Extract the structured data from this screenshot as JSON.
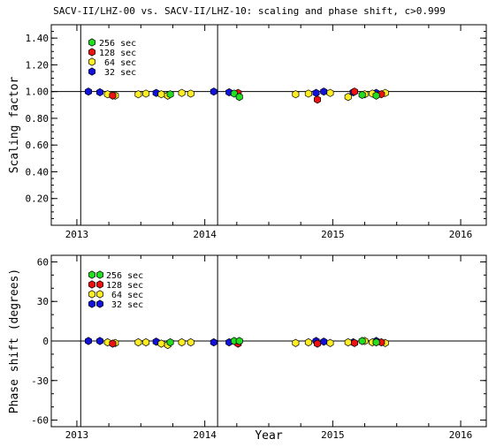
{
  "title": "SACV-II/LHZ-00 vs. SACV-II/LHZ-10: scaling and phase shift, c>0.999",
  "colors": {
    "256 sec": "#22dd22",
    "128 sec": "#ee1111",
    "64 sec": "#ffee22",
    "32 sec": "#1111dd",
    "axes": "#000000"
  },
  "chart_data": [
    {
      "type": "scatter",
      "title": "SACV-II/LHZ-00 vs. SACV-II/LHZ-10: scaling and phase shift, c>0.999",
      "xlabel": "",
      "ylabel": "Scaling factor",
      "xlim": [
        2012.8,
        2016.2
      ],
      "ylim": [
        0.0,
        1.5
      ],
      "x_ticks": [
        "2013",
        "2014",
        "2015",
        "2016"
      ],
      "y_ticks": [
        "0.20",
        "0.40",
        "0.60",
        "0.80",
        "1.00",
        "1.20",
        "1.40"
      ],
      "reference_line": 1.0,
      "vertical_lines": [
        2013.03,
        2014.1
      ],
      "legend": {
        "placement": "top-left",
        "entries": [
          "256 sec",
          "128 sec",
          "64 sec",
          "32 sec"
        ]
      },
      "series": [
        {
          "name": "32 sec",
          "x": [
            2013.09,
            2013.18,
            2013.62,
            2014.07,
            2014.19,
            2014.87,
            2014.93,
            2015.16,
            2015.34
          ],
          "y": [
            1.0,
            0.995,
            0.99,
            1.0,
            0.995,
            0.99,
            1.0,
            0.995,
            0.99
          ]
        },
        {
          "name": "64 sec",
          "x": [
            2013.24,
            2013.3,
            2013.48,
            2013.54,
            2013.66,
            2013.71,
            2013.82,
            2013.89,
            2014.71,
            2014.81,
            2014.98,
            2015.12,
            2015.25,
            2015.31,
            2015.41
          ],
          "y": [
            0.98,
            0.97,
            0.98,
            0.985,
            0.98,
            0.97,
            0.99,
            0.985,
            0.98,
            0.985,
            0.99,
            0.96,
            0.98,
            0.985,
            0.99
          ]
        },
        {
          "name": "128 sec",
          "x": [
            2013.28,
            2014.26,
            2014.88,
            2015.17,
            2015.38
          ],
          "y": [
            0.97,
            0.99,
            0.94,
            1.0,
            0.98
          ]
        },
        {
          "name": "256 sec",
          "x": [
            2013.73,
            2014.23,
            2014.27,
            2015.23,
            2015.34
          ],
          "y": [
            0.98,
            0.985,
            0.96,
            0.975,
            0.97
          ]
        }
      ]
    },
    {
      "type": "scatter",
      "xlabel": "Year",
      "ylabel": "Phase shift (degrees)",
      "xlim": [
        2012.8,
        2016.2
      ],
      "ylim": [
        -65,
        65
      ],
      "x_ticks": [
        "2013",
        "2014",
        "2015",
        "2016"
      ],
      "y_ticks": [
        "60",
        "30",
        "0",
        "-30",
        "-60"
      ],
      "reference_line": 0,
      "vertical_lines": [
        2013.03,
        2014.1
      ],
      "legend": {
        "placement": "top-left",
        "entries": [
          "256 sec",
          "128 sec",
          "64 sec",
          "32 sec"
        ]
      },
      "series": [
        {
          "name": "32 sec",
          "x": [
            2013.09,
            2013.18,
            2013.62,
            2014.07,
            2014.19,
            2014.87,
            2014.93,
            2015.16,
            2015.34
          ],
          "y": [
            0,
            0,
            -0.5,
            -1,
            -1,
            0,
            -0.5,
            -1,
            0
          ]
        },
        {
          "name": "64 sec",
          "x": [
            2013.24,
            2013.3,
            2013.48,
            2013.54,
            2013.66,
            2013.71,
            2013.82,
            2013.89,
            2014.71,
            2014.81,
            2014.98,
            2015.12,
            2015.25,
            2015.31,
            2015.41
          ],
          "y": [
            -1,
            -1.5,
            -1,
            -1,
            -2,
            -3,
            -1,
            -1,
            -1.5,
            -1,
            -1.5,
            -1,
            0,
            -1,
            -1.5
          ]
        },
        {
          "name": "128 sec",
          "x": [
            2013.28,
            2014.26,
            2014.88,
            2015.17,
            2015.38
          ],
          "y": [
            -2,
            -2,
            -2,
            -1.5,
            -1
          ]
        },
        {
          "name": "256 sec",
          "x": [
            2013.73,
            2014.23,
            2014.27,
            2015.23,
            2015.34
          ],
          "y": [
            -1,
            0,
            0,
            0,
            -1
          ]
        }
      ]
    }
  ]
}
